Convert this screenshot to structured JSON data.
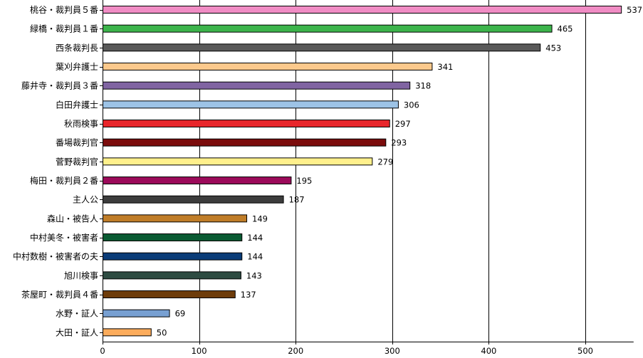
{
  "chart_data": {
    "type": "bar",
    "orientation": "horizontal",
    "title": "",
    "xlabel": "",
    "ylabel": "",
    "xlim": [
      0,
      550
    ],
    "x_ticks": [
      0,
      100,
      200,
      300,
      400,
      500
    ],
    "grid": "vertical",
    "legend": "none",
    "categories": [
      "桃谷・裁判員５番",
      "緑橋・裁判員１番",
      "西条裁判長",
      "葉刈弁護士",
      "藤井寺・裁判員３番",
      "白田弁護士",
      "秋雨検事",
      "番場裁判官",
      "菅野裁判官",
      "梅田・裁判員２番",
      "主人公",
      "森山・被告人",
      "中村美冬・被害者",
      "中村数樹・被害者の夫",
      "旭川検事",
      "茶屋町・裁判員４番",
      "水野・証人",
      "大田・証人"
    ],
    "values": [
      537,
      465,
      453,
      341,
      318,
      306,
      297,
      293,
      279,
      195,
      187,
      149,
      144,
      144,
      143,
      137,
      69,
      50
    ],
    "colors": [
      "#f08cc4",
      "#3cb44b",
      "#595959",
      "#fcc98c",
      "#8064a2",
      "#9dc3e6",
      "#e8262b",
      "#7b0c0c",
      "#fff08c",
      "#9b0a5a",
      "#3c3c3c",
      "#c07d28",
      "#0a5a32",
      "#0a3c78",
      "#2d4b41",
      "#6e3c0a",
      "#78a0d2",
      "#fcac5c"
    ]
  }
}
